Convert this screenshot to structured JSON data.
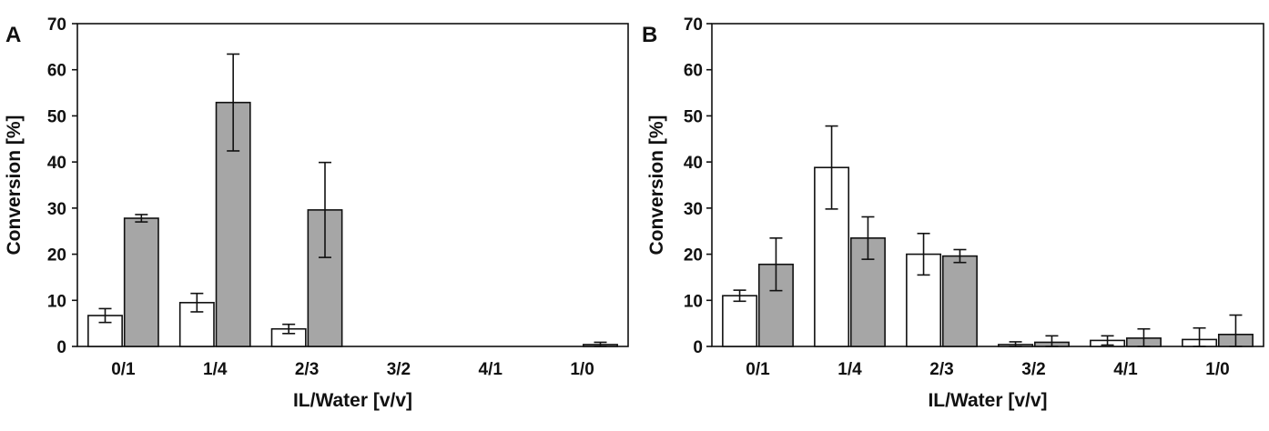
{
  "colors": {
    "white_bar": "#ffffff",
    "gray_bar": "#a6a6a6",
    "stroke": "#111111"
  },
  "chart_data": [
    {
      "type": "bar",
      "panel": "A",
      "xlabel": "IL/Water [v/v]",
      "ylabel": "Conversion [%]",
      "ylim": [
        0,
        70
      ],
      "yticks": [
        0,
        10,
        20,
        30,
        40,
        50,
        60,
        70
      ],
      "grid": false,
      "categories": [
        "0/1",
        "1/4",
        "2/3",
        "3/2",
        "4/1",
        "1/0"
      ],
      "series": [
        {
          "color": "#ffffff",
          "values": [
            6.7,
            9.5,
            3.8,
            0,
            0,
            0
          ],
          "errors": [
            1.5,
            2.0,
            1.0,
            0,
            0,
            0
          ]
        },
        {
          "color": "#a6a6a6",
          "values": [
            27.8,
            52.9,
            29.6,
            0,
            0,
            0.4
          ],
          "errors": [
            0.8,
            10.5,
            10.3,
            0,
            0,
            0.5
          ]
        }
      ]
    },
    {
      "type": "bar",
      "panel": "B",
      "xlabel": "IL/Water [v/v]",
      "ylabel": "Conversion [%]",
      "ylim": [
        0,
        70
      ],
      "yticks": [
        0,
        10,
        20,
        30,
        40,
        50,
        60,
        70
      ],
      "grid": false,
      "categories": [
        "0/1",
        "1/4",
        "2/3",
        "3/2",
        "4/1",
        "1/0"
      ],
      "series": [
        {
          "color": "#ffffff",
          "values": [
            11.0,
            38.8,
            20.0,
            0.4,
            1.3,
            1.5
          ],
          "errors": [
            1.2,
            9.0,
            4.5,
            0.6,
            1.0,
            2.5
          ]
        },
        {
          "color": "#a6a6a6",
          "values": [
            17.8,
            23.5,
            19.6,
            0.9,
            1.8,
            2.6
          ],
          "errors": [
            5.7,
            4.6,
            1.4,
            1.4,
            2.0,
            4.2
          ]
        }
      ]
    }
  ]
}
